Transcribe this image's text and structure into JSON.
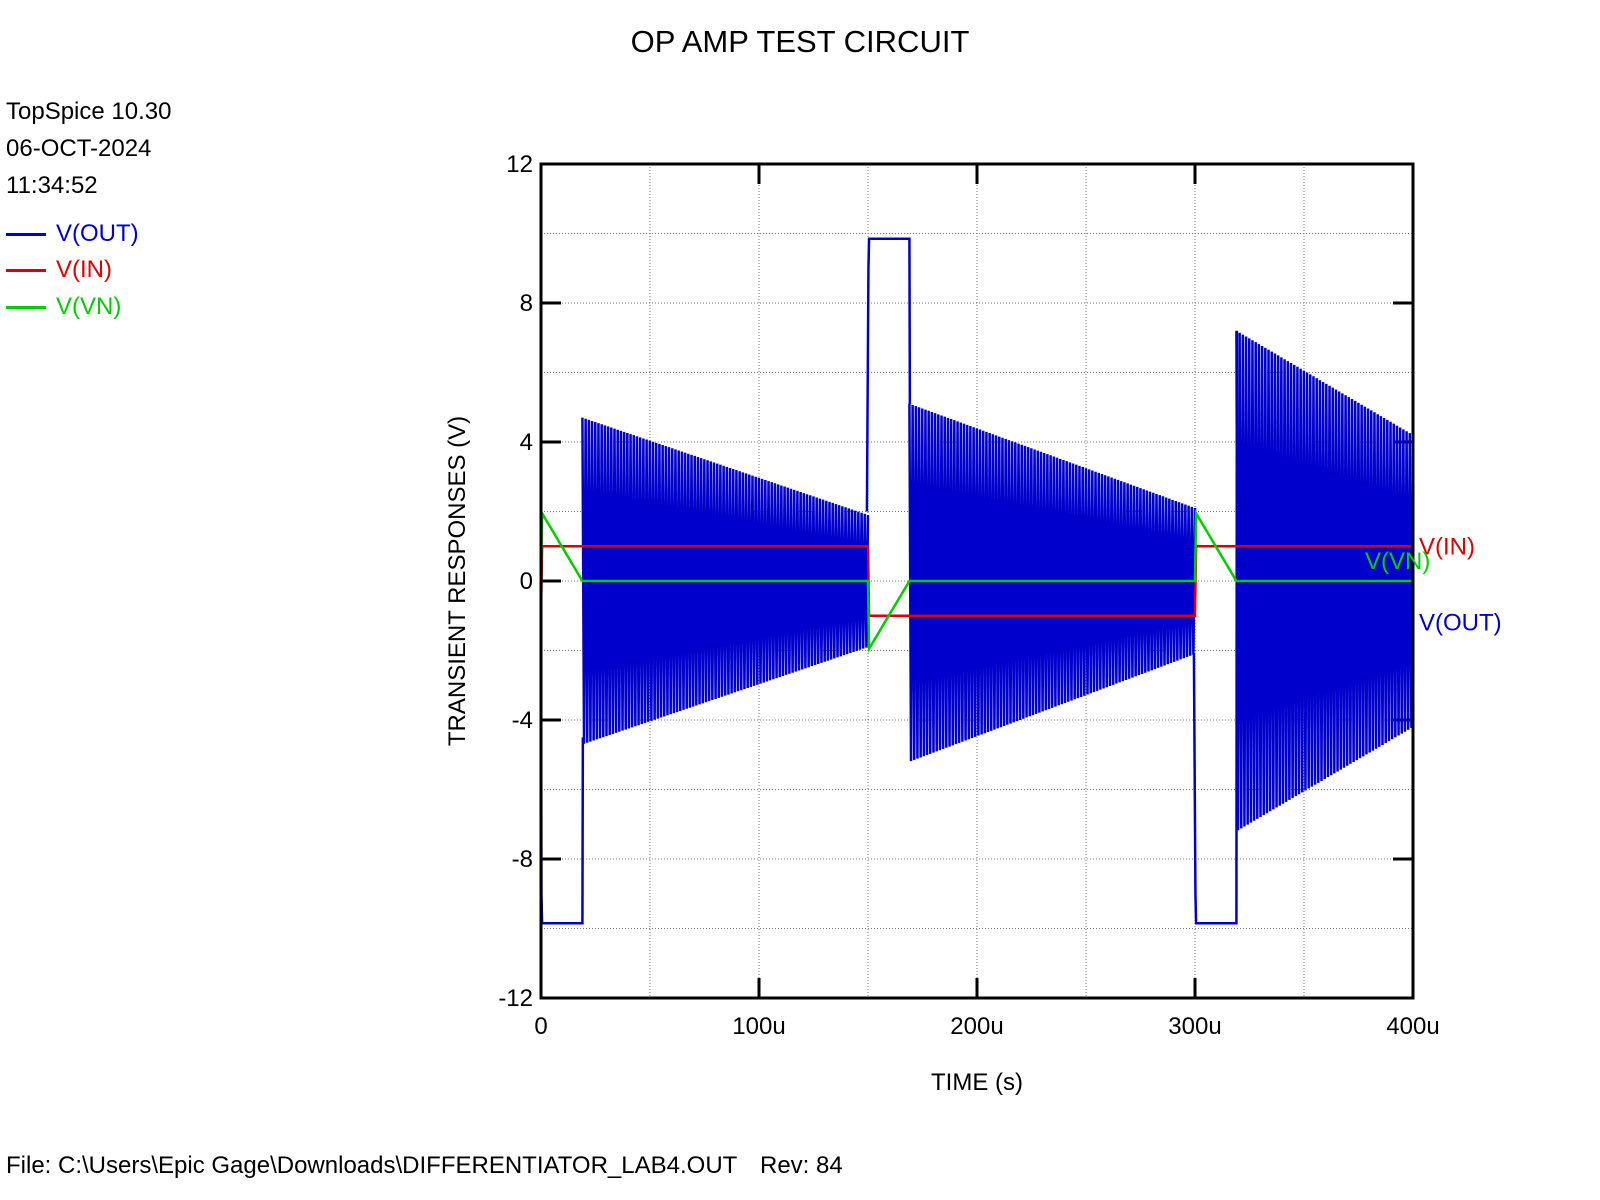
{
  "header": {
    "title": "OP AMP TEST CIRCUIT",
    "program": "TopSpice 10.30",
    "date": "06-OCT-2024",
    "time": "11:34:52"
  },
  "legend": [
    {
      "label": "V(OUT)",
      "color": "#0000cc"
    },
    {
      "label": "V(IN)",
      "color": "#dd0000"
    },
    {
      "label": "V(VN)",
      "color": "#00cc00"
    }
  ],
  "footer": {
    "file": "File: C:\\Users\\Epic Gage\\Downloads\\DIFFERENTIATOR_LAB4.OUT",
    "rev": "Rev: 84"
  },
  "chart_data": {
    "type": "line",
    "xlabel": "TIME  (s)",
    "ylabel": "TRANSIENT RESPONSES  (V)",
    "xlim": [
      0,
      0.0004
    ],
    "ylim": [
      -12,
      12
    ],
    "x_ticks": [
      {
        "value": 0,
        "label": "0"
      },
      {
        "value": 0.0001,
        "label": "100u"
      },
      {
        "value": 0.0002,
        "label": "200u"
      },
      {
        "value": 0.0003,
        "label": "300u"
      },
      {
        "value": 0.0004,
        "label": "400u"
      }
    ],
    "y_ticks": [
      {
        "value": -12,
        "label": "-12"
      },
      {
        "value": -8,
        "label": "-8"
      },
      {
        "value": -4,
        "label": "-4"
      },
      {
        "value": 0,
        "label": "0"
      },
      {
        "value": 4,
        "label": "4"
      },
      {
        "value": 8,
        "label": "8"
      },
      {
        "value": 12,
        "label": "12"
      }
    ],
    "grid": true,
    "series": [
      {
        "name": "V(OUT)",
        "color": "#0000cc",
        "end_label": "V(OUT)",
        "saturation": [
          {
            "x": [
              0,
              2e-07,
              5e-07,
              1.9e-05,
              1.92e-05
            ],
            "y": [
              -1,
              -9.0,
              -9.85,
              -9.85,
              -4.5
            ]
          },
          {
            "x": [
              0.0001495,
              0.0001502,
              0.0001505,
              0.000169,
              0.0001692
            ],
            "y": [
              2,
              9.0,
              9.85,
              9.85,
              5.1
            ]
          },
          {
            "x": [
              0.0002995,
              0.0003002,
              0.0003005,
              0.000319,
              0.0003192
            ],
            "y": [
              -2.1,
              -9.0,
              -9.85,
              -9.85,
              7.2
            ]
          }
        ],
        "oscillation_envelope": [
          {
            "x": [
              1.9e-05,
              0.00015
            ],
            "upper": [
              4.7,
              1.9
            ],
            "lower": [
              -4.7,
              -1.9
            ]
          },
          {
            "x": [
              0.000169,
              0.0003
            ],
            "upper": [
              5.1,
              2.1
            ],
            "lower": [
              -5.2,
              -2.1
            ]
          },
          {
            "x": [
              0.000319,
              0.0004
            ],
            "upper": [
              7.2,
              4.2
            ],
            "lower": [
              -7.2,
              -4.2
            ]
          }
        ]
      },
      {
        "name": "V(IN)",
        "color": "#dd0000",
        "end_label": "V(IN)",
        "x": [
          0,
          5e-07,
          0.00015,
          0.0001505,
          0.0003,
          0.0003005,
          0.0004
        ],
        "y": [
          -1,
          1,
          1,
          -1,
          -1,
          1,
          1
        ]
      },
      {
        "name": "V(VN)",
        "color": "#00cc00",
        "end_label": "V(VN)",
        "x": [
          0,
          5e-07,
          1.9e-05,
          0.00015,
          0.0001505,
          0.000169,
          0.0003,
          0.0003005,
          0.000319,
          0.0004
        ],
        "y": [
          0,
          1.95,
          0,
          0,
          -1.95,
          0,
          0,
          1.95,
          0,
          0
        ]
      }
    ]
  }
}
